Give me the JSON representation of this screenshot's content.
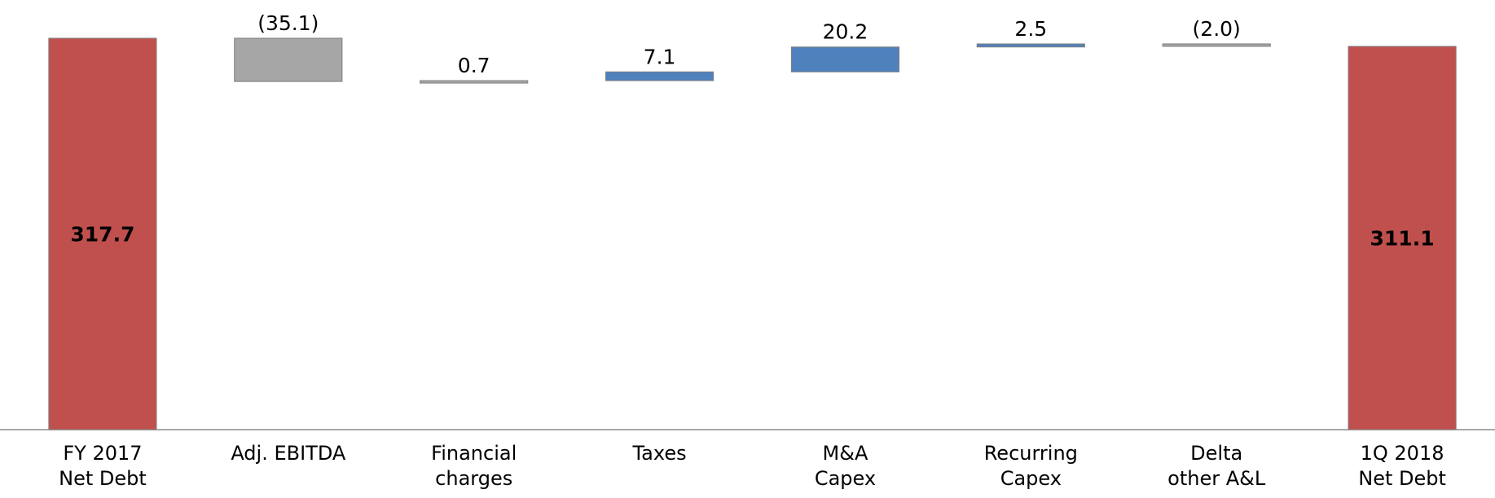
{
  "chart_data": {
    "type": "waterfall",
    "categories": [
      "FY 2017\nNet Debt",
      "Adj. EBITDA",
      "Financial\ncharges",
      "Taxes",
      "M&A\nCapex",
      "Recurring\nCapex",
      "Delta\nother A&L",
      "1Q 2018\nNet Debt"
    ],
    "measures": [
      "total",
      "relative",
      "relative",
      "relative",
      "relative",
      "relative",
      "relative",
      "total"
    ],
    "values": [
      317.7,
      -35.1,
      0.7,
      7.1,
      20.2,
      2.5,
      -2.0,
      311.1
    ],
    "value_labels": [
      "317.7",
      "(35.1)",
      "0.7",
      "7.1",
      "20.2",
      "2.5",
      "(2.0)",
      "311.1"
    ],
    "colors": [
      "#c0504d",
      "#a6a6a6",
      "#a6a6a6",
      "#4f81bd",
      "#4f81bd",
      "#4f81bd",
      "#a6a6a6",
      "#c0504d"
    ]
  }
}
